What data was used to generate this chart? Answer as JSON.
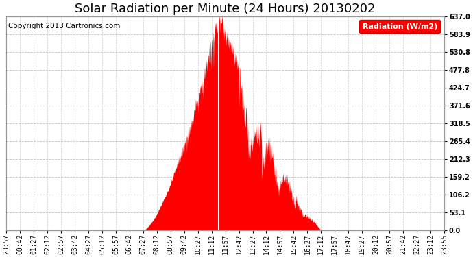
{
  "title": "Solar Radiation per Minute (24 Hours) 20130202",
  "copyright_text": "Copyright 2013 Cartronics.com",
  "legend_label": "Radiation (W/m2)",
  "background_color": "#ffffff",
  "plot_bg_color": "#ffffff",
  "fill_color": "#ff0000",
  "grid_color": "#bbbbbb",
  "ytick_labels": [
    "0.0",
    "53.1",
    "106.2",
    "159.2",
    "212.3",
    "265.4",
    "318.5",
    "371.6",
    "424.7",
    "477.8",
    "530.8",
    "583.9",
    "637.0"
  ],
  "ytick_values": [
    0.0,
    53.1,
    106.2,
    159.2,
    212.3,
    265.4,
    318.5,
    371.6,
    424.7,
    477.8,
    530.8,
    583.9,
    637.0
  ],
  "ymax": 637.0,
  "ymin": 0.0,
  "xtick_labels": [
    "23:57",
    "00:42",
    "01:27",
    "02:12",
    "02:57",
    "03:42",
    "04:27",
    "05:12",
    "05:57",
    "06:42",
    "07:27",
    "08:12",
    "08:57",
    "09:42",
    "10:27",
    "11:12",
    "11:57",
    "12:42",
    "13:27",
    "14:12",
    "14:57",
    "15:42",
    "16:27",
    "17:12",
    "17:57",
    "18:42",
    "19:27",
    "20:12",
    "20:57",
    "21:42",
    "22:27",
    "23:12",
    "23:55"
  ],
  "title_fontsize": 13,
  "copyright_fontsize": 7.5,
  "tick_fontsize": 7,
  "legend_fontsize": 8,
  "figwidth": 6.9,
  "figheight": 3.75,
  "dpi": 100
}
